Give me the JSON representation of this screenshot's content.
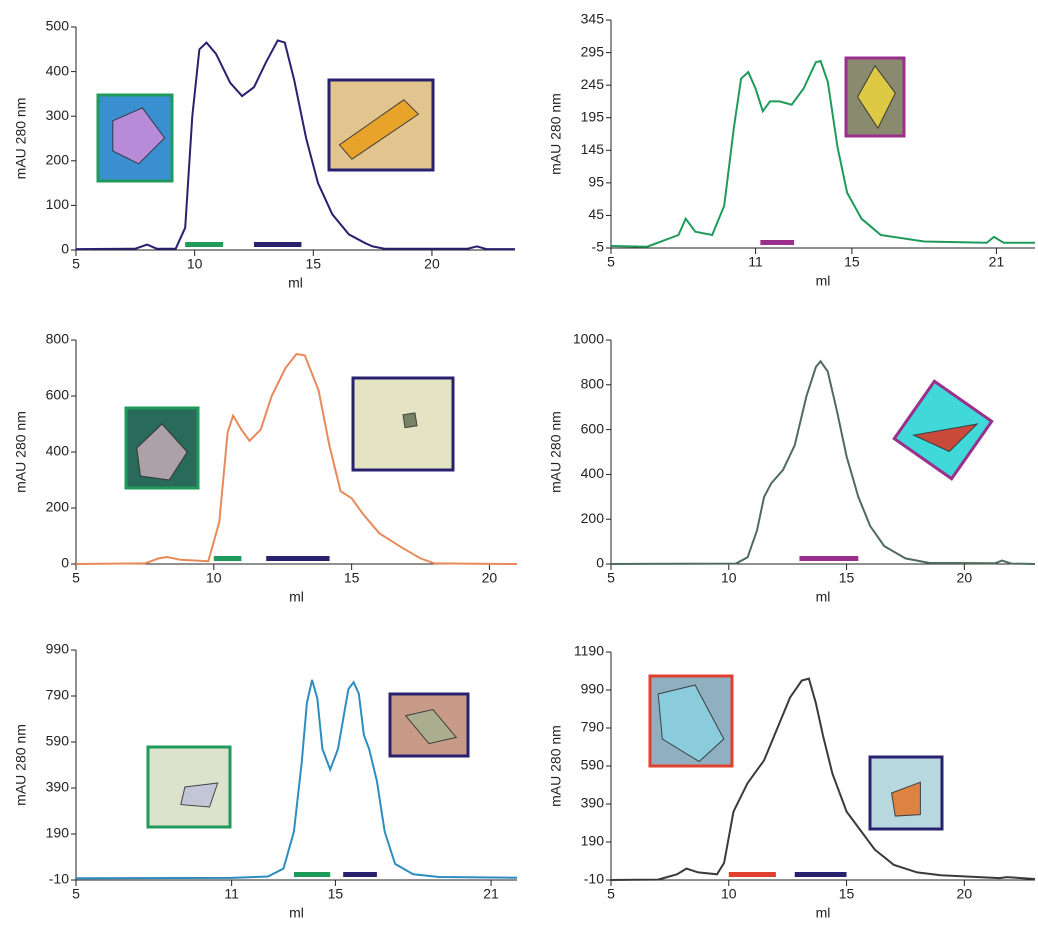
{
  "chart_data": [
    {
      "type": "line",
      "x_label": "ml",
      "y_label": "mAU 280 nm",
      "color": "#28226e",
      "xlim": [
        5,
        23.5
      ],
      "xticks": [
        5,
        10,
        15,
        20
      ],
      "ylim": [
        0,
        500
      ],
      "yticks": [
        0,
        100,
        200,
        300,
        400,
        500
      ],
      "x": [
        5,
        7.5,
        8,
        8.4,
        9.2,
        9.6,
        9.9,
        10.2,
        10.5,
        10.9,
        11.5,
        12,
        12.5,
        13,
        13.5,
        13.8,
        14.2,
        14.7,
        15.2,
        15.8,
        16.5,
        17.2,
        17.5,
        18,
        21.5,
        21.9,
        22.3,
        23.5
      ],
      "values": [
        2,
        3,
        12,
        3,
        3,
        50,
        300,
        450,
        465,
        440,
        375,
        345,
        365,
        420,
        470,
        465,
        380,
        250,
        150,
        80,
        35,
        15,
        8,
        3,
        3,
        8,
        2,
        2
      ],
      "fractions": [
        {
          "range": [
            9.6,
            11.2
          ],
          "color": "#1f9a5a"
        },
        {
          "range": [
            12.5,
            14.5
          ],
          "color": "#28226e"
        }
      ]
    },
    {
      "type": "line",
      "x_label": "ml",
      "y_label": "mAU 280 nm",
      "color": "#1f9a5a",
      "xlim": [
        5,
        22.6
      ],
      "xticks": [
        5,
        11,
        15,
        21
      ],
      "ylim": [
        -5,
        345
      ],
      "yticks": [
        -5,
        45,
        95,
        145,
        195,
        245,
        295,
        345
      ],
      "x": [
        5,
        6.5,
        7.8,
        8.1,
        8.5,
        9.2,
        9.7,
        10.1,
        10.4,
        10.7,
        11,
        11.3,
        11.6,
        12,
        12.5,
        13,
        13.5,
        13.7,
        14,
        14.4,
        14.8,
        15.4,
        16.2,
        18,
        20.6,
        20.9,
        21.3,
        22.6
      ],
      "values": [
        -2,
        -3,
        15,
        40,
        20,
        15,
        60,
        180,
        255,
        265,
        240,
        205,
        220,
        220,
        215,
        240,
        280,
        282,
        250,
        150,
        80,
        40,
        15,
        5,
        3,
        12,
        3,
        3
      ],
      "fractions": [
        {
          "range": [
            11.2,
            12.6
          ],
          "color": "#9a2f8c"
        }
      ]
    },
    {
      "type": "line",
      "x_label": "ml",
      "y_label": "mAU 280 nm",
      "color": "#e8895a",
      "xlim": [
        5,
        21
      ],
      "xticks": [
        5,
        10,
        15,
        20
      ],
      "ylim": [
        0,
        800
      ],
      "yticks": [
        0,
        200,
        400,
        600,
        800
      ],
      "x": [
        5,
        7.5,
        8,
        8.3,
        8.8,
        9.8,
        10.2,
        10.5,
        10.7,
        11,
        11.3,
        11.7,
        12.1,
        12.6,
        13,
        13.3,
        13.8,
        14.2,
        14.6,
        15,
        15.4,
        16,
        16.8,
        17.5,
        18,
        21
      ],
      "values": [
        0,
        2,
        20,
        25,
        15,
        10,
        150,
        470,
        530,
        480,
        440,
        480,
        600,
        700,
        750,
        745,
        620,
        420,
        260,
        235,
        180,
        110,
        60,
        20,
        2,
        0
      ],
      "fractions": [
        {
          "range": [
            10,
            11
          ],
          "color": "#1f9a5a"
        },
        {
          "range": [
            11.9,
            14.2
          ],
          "color": "#28226e"
        }
      ]
    },
    {
      "type": "line",
      "x_label": "ml",
      "y_label": "mAU 280 nm",
      "color": "#4f6b5e",
      "xlim": [
        5,
        23
      ],
      "xticks": [
        5,
        10,
        15,
        20
      ],
      "ylim": [
        0,
        1000
      ],
      "yticks": [
        0,
        200,
        400,
        600,
        800,
        1000
      ],
      "x": [
        5,
        10.3,
        10.8,
        11.2,
        11.5,
        11.8,
        12.3,
        12.8,
        13.3,
        13.7,
        13.9,
        14.2,
        14.6,
        15,
        15.5,
        16,
        16.6,
        17.5,
        18.5,
        21.3,
        21.6,
        22,
        23
      ],
      "values": [
        0,
        2,
        30,
        150,
        300,
        360,
        420,
        530,
        750,
        880,
        905,
        860,
        680,
        480,
        300,
        170,
        80,
        25,
        5,
        3,
        15,
        2,
        0
      ],
      "fractions": [
        {
          "range": [
            13,
            15.5
          ],
          "color": "#9a2f8c"
        }
      ]
    },
    {
      "type": "line",
      "x_label": "ml",
      "y_label": "mAU 280 nm",
      "color": "#2d8dc0",
      "xlim": [
        5,
        22
      ],
      "xticks": [
        5,
        11,
        15,
        21
      ],
      "ylim": [
        -10,
        990
      ],
      "yticks": [
        -10,
        190,
        390,
        590,
        790,
        990
      ],
      "x": [
        5,
        11,
        12.4,
        13,
        13.4,
        13.7,
        13.9,
        14.1,
        14.3,
        14.5,
        14.8,
        15.1,
        15.5,
        15.7,
        15.9,
        16.1,
        16.3,
        16.6,
        16.9,
        17.3,
        18,
        19,
        22
      ],
      "values": [
        -2,
        -1,
        5,
        40,
        200,
        500,
        760,
        860,
        780,
        560,
        470,
        560,
        820,
        850,
        800,
        620,
        560,
        420,
        200,
        60,
        15,
        3,
        0
      ],
      "fractions": [
        {
          "range": [
            13.4,
            14.8
          ],
          "color": "#1f9a5a"
        },
        {
          "range": [
            15.3,
            16.6
          ],
          "color": "#28226e"
        }
      ]
    },
    {
      "type": "line",
      "x_label": "ml",
      "y_label": "mAU 280 nm",
      "color": "#3a3a3a",
      "xlim": [
        5,
        23
      ],
      "xticks": [
        5,
        10,
        15,
        20
      ],
      "ylim": [
        -10,
        1190
      ],
      "yticks": [
        -10,
        190,
        390,
        590,
        790,
        990,
        1190
      ],
      "x": [
        5,
        7,
        7.8,
        8.2,
        8.7,
        9.5,
        9.8,
        10.2,
        10.8,
        11.5,
        12.1,
        12.6,
        13.1,
        13.4,
        13.7,
        14,
        14.4,
        15,
        15.6,
        16.2,
        17,
        18,
        19,
        21.5,
        21.8,
        23
      ],
      "values": [
        -10,
        -8,
        20,
        50,
        30,
        20,
        80,
        350,
        500,
        620,
        800,
        950,
        1040,
        1050,
        920,
        750,
        550,
        350,
        250,
        150,
        70,
        30,
        15,
        0,
        5,
        -5
      ],
      "fractions": [
        {
          "range": [
            10,
            12
          ],
          "color": "#e0412f"
        },
        {
          "range": [
            12.8,
            15
          ],
          "color": "#28226e"
        }
      ]
    }
  ]
}
